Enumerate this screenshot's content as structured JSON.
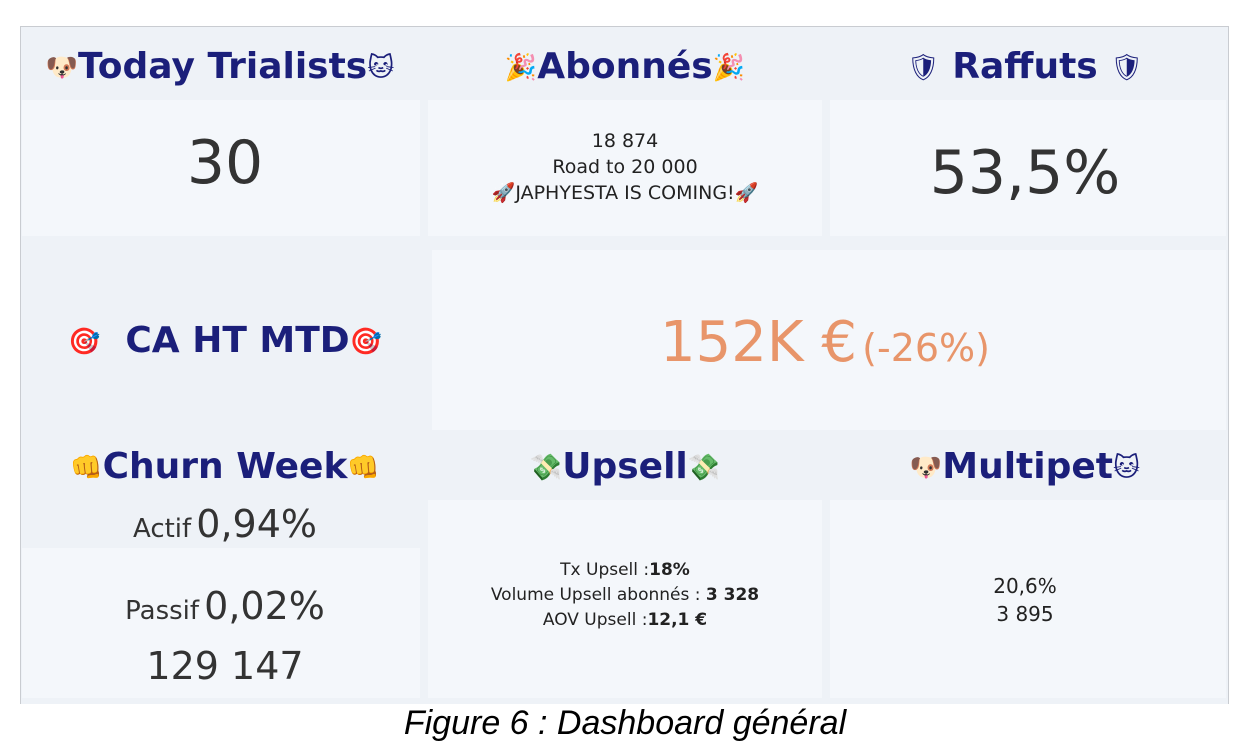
{
  "tiles": {
    "trialists": {
      "title": "Today Trialists",
      "icon_left": "dog-face-icon",
      "icon_right": "cat-face-icon",
      "value": "30"
    },
    "abonnes": {
      "title": "Abonnés",
      "icon_left": "party-popper-icon",
      "icon_right": "party-popper-icon",
      "line1": "18 874",
      "line2": "Road to 20 000",
      "line3": "JAPHYESTA IS COMING!",
      "line_icon": "rocket-icon"
    },
    "raffuts": {
      "title": "Raffuts",
      "icon_left": "shield-icon",
      "icon_right": "shield-icon",
      "value": "53,5%"
    },
    "ca": {
      "title": "CA HT MTD",
      "icon_left": "dart-target-icon",
      "icon_right": "dart-target-icon",
      "value": "152K €",
      "delta": "(-26%)",
      "accent": "#e8956a"
    },
    "churn": {
      "title": "Churn Week",
      "icon_left": "fist-icon",
      "icon_right": "fist-icon",
      "actif_label": "Actif",
      "actif_value": "0,94%",
      "passif_label": "Passif",
      "passif_value": "0,02%",
      "total": "129 147"
    },
    "upsell": {
      "title": "Upsell",
      "icon_left": "money-wings-icon",
      "icon_right": "money-wings-icon",
      "tx_label": "Tx Upsell :",
      "tx_value": "18%",
      "vol_label": "Volume Upsell abonnés : ",
      "vol_value": "3 328",
      "aov_label": "AOV Upsell :",
      "aov_value": "12,1 €"
    },
    "multipet": {
      "title": "Multipet",
      "icon_left": "dog-face-icon",
      "icon_right": "cat-face-icon",
      "line1": "20,6%",
      "line2": "3 895"
    }
  },
  "caption": "Figure 6 : Dashboard général",
  "colors": {
    "title": "#1b1f7a",
    "accent": "#e8956a",
    "background": "#eef2f7"
  }
}
